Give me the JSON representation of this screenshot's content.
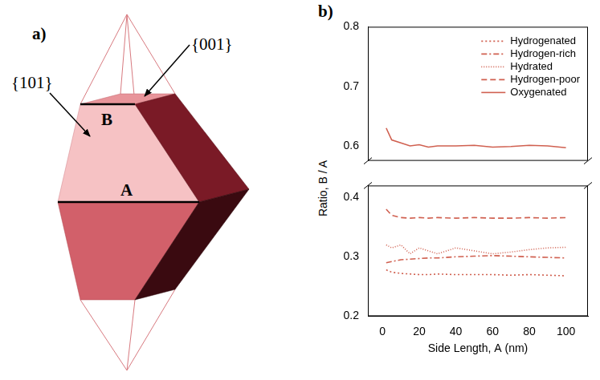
{
  "diagram": {
    "title": "a)",
    "labels": {
      "face_101": "{101}",
      "face_001": "{001}",
      "edge_A": "A",
      "edge_B": "B"
    }
  },
  "chart_data": {
    "type": "line",
    "title": "b)",
    "x_label": "Side Length, A (nm)",
    "y_label": "Ratio, B / A",
    "xlim": [
      -8,
      112
    ],
    "xticks": [
      0,
      20,
      40,
      60,
      80,
      100
    ],
    "ylim": [
      0.2,
      0.42
    ],
    "yticks": [
      0.2,
      0.3,
      0.4
    ],
    "y2lim": [
      0.575,
      0.8
    ],
    "y2ticks": [
      0.6,
      0.7,
      0.8
    ],
    "x": [
      2,
      5,
      10,
      15,
      20,
      25,
      30,
      40,
      50,
      60,
      70,
      80,
      90,
      100
    ],
    "series": [
      {
        "name": "Hydrogenated",
        "color": "#d06050",
        "line_style": "dotted",
        "values": [
          0.278,
          0.274,
          0.272,
          0.271,
          0.27,
          0.27,
          0.271,
          0.27,
          0.27,
          0.27,
          0.269,
          0.27,
          0.269,
          0.268
        ]
      },
      {
        "name": "Hydrogen-rich",
        "color": "#d06050",
        "line_style": "dashdot",
        "values": [
          0.29,
          0.292,
          0.295,
          0.296,
          0.297,
          0.298,
          0.298,
          0.3,
          0.301,
          0.302,
          0.301,
          0.3,
          0.299,
          0.298
        ]
      },
      {
        "name": "Hydrated",
        "color": "#d06050",
        "line_style": "densely_dotted",
        "values": [
          0.32,
          0.315,
          0.32,
          0.305,
          0.315,
          0.31,
          0.305,
          0.315,
          0.31,
          0.305,
          0.308,
          0.312,
          0.315,
          0.316
        ]
      },
      {
        "name": "Hydrogen-poor",
        "color": "#d06050",
        "line_style": "dashed",
        "values": [
          0.38,
          0.37,
          0.366,
          0.365,
          0.366,
          0.365,
          0.366,
          0.365,
          0.366,
          0.365,
          0.365,
          0.366,
          0.365,
          0.366
        ]
      },
      {
        "name": "Oxygenated",
        "color": "#d06050",
        "line_style": "solid",
        "axis": "y2",
        "values": [
          0.63,
          0.61,
          0.605,
          0.6,
          0.602,
          0.598,
          0.6,
          0.6,
          0.601,
          0.598,
          0.599,
          0.601,
          0.6,
          0.597
        ]
      }
    ],
    "legend": "top right",
    "grid": false
  }
}
